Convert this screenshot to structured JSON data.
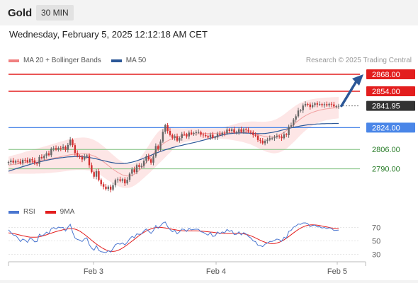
{
  "header": {
    "symbol": "Gold",
    "timeframe": "30 MIN"
  },
  "datetime": "Wednesday, February 5, 2025 12:12:18 AM CET",
  "legend_main": [
    {
      "label": "MA 20 + Bollinger Bands",
      "color": "#f08080"
    },
    {
      "label": "MA 50",
      "color": "#2b5797"
    }
  ],
  "legend_rsi": [
    {
      "label": "RSI",
      "color": "#4a76d0"
    },
    {
      "label": "9MA",
      "color": "#e31e1e"
    }
  ],
  "credit": "Research © 2025 Trading Central",
  "colors": {
    "resistance": "#e31e1e",
    "support_blue": "#4a86e8",
    "support_green": "#7ec07e",
    "candle_up": "#666666",
    "candle_down": "#d32f2f",
    "band": "#fde2e2",
    "ma20": "#f2a0a0",
    "ma50": "#2b5797",
    "arrow": "#2b5797",
    "last_price": "#333333"
  },
  "chart_data": [
    {
      "type": "candlestick",
      "title": "",
      "x_ticks": [
        "Feb 3",
        "Feb 4",
        "Feb 5"
      ],
      "ylim": [
        2760,
        2875
      ],
      "levels": [
        {
          "value": 2868.0,
          "label": "2868.00",
          "style": "red"
        },
        {
          "value": 2854.0,
          "label": "2854.00",
          "style": "red"
        },
        {
          "value": 2841.95,
          "label": "2841.95",
          "style": "last"
        },
        {
          "value": 2824.0,
          "label": "2824.00",
          "style": "blue"
        },
        {
          "value": 2806.0,
          "label": "2806.00",
          "style": "green"
        },
        {
          "value": 2790.0,
          "label": "2790.00",
          "style": "green"
        }
      ],
      "closes": [
        2795.6,
        2796.8,
        2795.2,
        2796.4,
        2796.0,
        2794.6,
        2797.4,
        2797.2,
        2795.5,
        2797.9,
        2797.0,
        2794.4,
        2794.0,
        2799.8,
        2798.8,
        2800.7,
        2802.8,
        2801.3,
        2806.6,
        2807.1,
        2805.9,
        2807.3,
        2806.8,
        2808.1,
        2805.7,
        2809.7,
        2814.0,
        2809.5,
        2803.1,
        2800.7,
        2799.8,
        2797.7,
        2800.1,
        2801.1,
        2793.0,
        2787.3,
        2783.5,
        2788.0,
        2780.8,
        2777.3,
        2775.3,
        2773.3,
        2775.3,
        2772.8,
        2776.4,
        2780.7,
        2781.3,
        2780.1,
        2781.4,
        2778.0,
        2781.0,
        2786.0,
        2789.6,
        2787.3,
        2793.1,
        2791.6,
        2792.4,
        2796.7,
        2800.3,
        2797.8,
        2795.1,
        2800.2,
        2808.8,
        2806.3,
        2812.5,
        2820.5,
        2826.0,
        2821.3,
        2817.9,
        2815.6,
        2816.9,
        2813.3,
        2815.4,
        2818.7,
        2818.5,
        2816.7,
        2819.9,
        2818.9,
        2819.6,
        2820.1,
        2820.3,
        2818.2,
        2817.8,
        2817.0,
        2815.9,
        2818.2,
        2815.5,
        2815.9,
        2819.0,
        2818.1,
        2819.8,
        2819.2,
        2822.4,
        2821.3,
        2822.6,
        2820.0,
        2820.3,
        2822.6,
        2820.6,
        2822.6,
        2822.1,
        2820.7,
        2820.0,
        2817.9,
        2817.3,
        2813.8,
        2813.2,
        2811.1,
        2813.1,
        2814.0,
        2815.3,
        2815.3,
        2816.1,
        2817.0,
        2816.6,
        2815.3,
        2818.4,
        2817.8,
        2824.8,
        2825.9,
        2830.6,
        2833.3,
        2838.1,
        2838.2,
        2842.2,
        2843.5,
        2843.1,
        2841.0,
        2842.6,
        2844.0,
        2843.0,
        2843.4,
        2842.5,
        2843.3,
        2842.4,
        2843.6,
        2843.1,
        2841.5,
        2841.7,
        2841.95
      ],
      "ma20": [
        2793.0,
        2793.3,
        2793.6,
        2793.8,
        2794.1,
        2794.4,
        2794.7,
        2795.0,
        2795.3,
        2795.5,
        2795.8,
        2796.1,
        2796.4,
        2796.7,
        2797.0,
        2797.3,
        2797.7,
        2798.0,
        2798.4,
        2798.8,
        2799.2,
        2799.6,
        2800.0,
        2800.4,
        2800.8,
        2801.2,
        2801.6,
        2801.9,
        2802.1,
        2802.3,
        2802.4,
        2802.4,
        2802.4,
        2802.2,
        2801.9,
        2801.3,
        2800.6,
        2799.7,
        2798.6,
        2797.3,
        2795.8,
        2794.3,
        2792.7,
        2791.2,
        2789.7,
        2788.3,
        2787.0,
        2785.9,
        2785.0,
        2784.4,
        2784.1,
        2784.1,
        2784.6,
        2785.5,
        2786.9,
        2788.6,
        2790.6,
        2792.8,
        2795.2,
        2797.6,
        2800.1,
        2802.6,
        2804.9,
        2807.0,
        2808.9,
        2810.5,
        2811.9,
        2813.1,
        2814.1,
        2815.0,
        2815.7,
        2816.3,
        2816.8,
        2817.3,
        2817.7,
        2818.0,
        2818.3,
        2818.5,
        2818.7,
        2818.8,
        2818.9,
        2819.0,
        2819.1,
        2819.1,
        2819.2,
        2819.2,
        2819.3,
        2819.3,
        2819.4,
        2819.4,
        2819.5,
        2819.6,
        2819.7,
        2819.9,
        2820.0,
        2820.1,
        2820.2,
        2820.3,
        2820.3,
        2820.2,
        2820.0,
        2819.8,
        2819.5,
        2819.1,
        2818.6,
        2818.1,
        2817.6,
        2817.1,
        2816.7,
        2816.4,
        2816.3,
        2816.3,
        2816.6,
        2817.1,
        2817.9,
        2818.9,
        2820.1,
        2821.5,
        2823.1,
        2824.7,
        2826.4,
        2828.1,
        2829.7,
        2831.2,
        2832.6,
        2833.8,
        2834.9,
        2835.8,
        2836.6,
        2837.3,
        2837.9,
        2838.4,
        2838.8,
        2839.2,
        2839.5,
        2839.7,
        2840.0,
        2840.2,
        2840.3,
        2840.5
      ],
      "ma50": [
        2788.0,
        2788.7,
        2789.3,
        2790.0,
        2790.6,
        2791.2,
        2791.8,
        2792.4,
        2793.0,
        2793.6,
        2794.1,
        2794.7,
        2795.2,
        2795.7,
        2796.1,
        2796.6,
        2797.0,
        2797.4,
        2797.8,
        2798.2,
        2798.5,
        2798.8,
        2799.1,
        2799.3,
        2799.6,
        2799.8,
        2799.9,
        2800.0,
        2800.1,
        2800.1,
        2800.1,
        2800.0,
        2799.8,
        2799.6,
        2799.3,
        2799.0,
        2798.6,
        2798.2,
        2797.7,
        2797.2,
        2796.7,
        2796.3,
        2795.8,
        2795.4,
        2795.0,
        2794.7,
        2794.5,
        2794.4,
        2794.4,
        2794.5,
        2794.7,
        2795.1,
        2795.5,
        2796.0,
        2796.6,
        2797.3,
        2798.0,
        2798.8,
        2799.6,
        2800.4,
        2801.2,
        2802.0,
        2802.8,
        2803.6,
        2804.3,
        2805.0,
        2805.7,
        2806.3,
        2806.9,
        2807.5,
        2808.0,
        2808.5,
        2809.0,
        2809.4,
        2809.9,
        2810.3,
        2810.7,
        2811.2,
        2811.6,
        2812.1,
        2812.6,
        2813.1,
        2813.6,
        2814.1,
        2814.7,
        2815.3,
        2815.8,
        2816.4,
        2816.9,
        2817.4,
        2817.9,
        2818.3,
        2818.7,
        2819.0,
        2819.2,
        2819.4,
        2819.5,
        2819.6,
        2819.6,
        2819.6,
        2819.5,
        2819.4,
        2819.3,
        2819.2,
        2819.1,
        2819.1,
        2819.1,
        2819.1,
        2819.2,
        2819.4,
        2819.7,
        2820.0,
        2820.4,
        2820.8,
        2821.3,
        2821.8,
        2822.3,
        2822.8,
        2823.3,
        2823.8,
        2824.2,
        2824.7,
        2825.0,
        2825.4,
        2825.7,
        2826.0,
        2826.3,
        2826.5,
        2826.7,
        2826.8,
        2827.0,
        2827.1,
        2827.2,
        2827.2,
        2827.3,
        2827.3,
        2827.3,
        2827.4,
        2827.4,
        2827.4
      ],
      "band_width": [
        7.0,
        7.3,
        7.6,
        7.9,
        8.1,
        8.4,
        8.7,
        9.0,
        9.3,
        9.6,
        9.8,
        10.1,
        10.3,
        10.6,
        10.8,
        11.1,
        11.3,
        11.5,
        11.7,
        11.9,
        12.1,
        12.3,
        12.5,
        12.6,
        12.8,
        12.9,
        13.0,
        13.1,
        13.2,
        13.3,
        13.3,
        13.4,
        13.4,
        13.4,
        13.3,
        13.3,
        13.2,
        13.1,
        13.0,
        12.8,
        12.7,
        12.5,
        12.3,
        12.0,
        11.8,
        11.5,
        11.2,
        10.9,
        10.6,
        10.3,
        10.0,
        9.7,
        9.5,
        9.4,
        9.4,
        9.6,
        9.9,
        10.4,
        11.0,
        11.6,
        12.3,
        12.8,
        13.2,
        13.4,
        13.3,
        13.0,
        12.4,
        11.6,
        10.7,
        9.6,
        8.6,
        7.6,
        6.8,
        6.2,
        5.8,
        5.6,
        5.6,
        5.6,
        5.7,
        5.6,
        5.5,
        5.3,
        5.0,
        4.8,
        4.6,
        4.4,
        4.3,
        4.3,
        4.3,
        4.5,
        4.7,
        5.0,
        5.3,
        5.7,
        6.1,
        6.6,
        7.0,
        7.5,
        7.9,
        8.3,
        8.7,
        9.1,
        9.5,
        9.9,
        10.4,
        10.8,
        11.3,
        11.7,
        12.2,
        12.6,
        13.0,
        13.4,
        13.8,
        14.1,
        14.4,
        14.6,
        14.8,
        14.9,
        14.9,
        14.7,
        14.5,
        14.2,
        13.8,
        13.3,
        12.8,
        12.3,
        11.8,
        11.3,
        10.9,
        10.5,
        10.2,
        9.9,
        9.7,
        9.5,
        9.3,
        9.2,
        9.1,
        9.0,
        8.9,
        8.9
      ]
    },
    {
      "type": "line",
      "title": "",
      "ylim": [
        20,
        80
      ],
      "y_ticks": [
        70,
        50,
        30
      ],
      "series": [
        {
          "name": "RSI",
          "values": [
            66.4,
            62.5,
            58.7,
            58.2,
            54.2,
            49.0,
            52.7,
            51.2,
            47.8,
            54.0,
            52.6,
            48.6,
            49.0,
            59.9,
            57.4,
            59.5,
            63.1,
            61.0,
            68.2,
            69.8,
            67.6,
            70.4,
            69.6,
            70.1,
            64.6,
            70.3,
            74.7,
            62.8,
            54.3,
            52.2,
            51.2,
            49.0,
            53.2,
            54.5,
            44.3,
            39.2,
            36.1,
            42.9,
            35.9,
            33.9,
            33.3,
            32.5,
            35.5,
            33.4,
            38.6,
            44.5,
            46.0,
            45.2,
            46.9,
            44.0,
            47.8,
            53.1,
            56.6,
            54.8,
            60.4,
            59.7,
            60.4,
            65.0,
            67.8,
            64.4,
            61.2,
            65.3,
            72.8,
            68.8,
            72.5,
            76.6,
            78.1,
            71.3,
            67.0,
            63.7,
            65.6,
            60.5,
            63.5,
            67.7,
            67.1,
            64.0,
            68.7,
            66.4,
            67.2,
            67.5,
            67.3,
            63.6,
            62.7,
            60.5,
            58.5,
            62.5,
            56.6,
            57.5,
            63.3,
            60.5,
            63.4,
            61.8,
            67.1,
            64.1,
            65.7,
            59.5,
            59.8,
            63.5,
            58.9,
            62.2,
            60.3,
            56.7,
            54.3,
            50.0,
            48.8,
            43.6,
            43.2,
            41.5,
            45.2,
            46.8,
            49.0,
            49.2,
            50.8,
            52.7,
            51.8,
            49.3,
            55.5,
            53.9,
            64.2,
            65.6,
            70.4,
            72.2,
            75.2,
            74.6,
            76.7,
            76.8,
            75.7,
            71.2,
            72.9,
            73.6,
            71.0,
            71.1,
            69.2,
            70.0,
            68.2,
            69.6,
            68.5,
            65.6,
            65.8,
            66.0
          ]
        },
        {
          "name": "9MA",
          "values": [
            62.0,
            61.5,
            60.9,
            60.2,
            59.4,
            58.5,
            57.7,
            56.9,
            56.2,
            55.7,
            55.5,
            55.5,
            55.7,
            56.2,
            57.0,
            58.0,
            59.1,
            60.3,
            61.5,
            62.7,
            63.8,
            64.8,
            65.7,
            66.6,
            67.3,
            67.9,
            68.2,
            68.1,
            67.5,
            66.3,
            64.5,
            62.2,
            59.6,
            56.8,
            53.9,
            51.0,
            48.1,
            45.4,
            42.8,
            40.5,
            38.4,
            36.6,
            35.3,
            34.5,
            34.3,
            34.7,
            35.8,
            37.4,
            39.4,
            41.7,
            44.2,
            46.9,
            49.6,
            52.4,
            55.2,
            57.9,
            60.4,
            62.7,
            64.8,
            66.5,
            67.9,
            69.0,
            69.7,
            70.1,
            70.1,
            69.8,
            69.3,
            68.7,
            68.0,
            67.3,
            66.7,
            66.1,
            65.6,
            65.3,
            65.1,
            64.9,
            64.9,
            64.9,
            64.9,
            64.9,
            64.8,
            64.6,
            64.3,
            64.0,
            63.6,
            63.2,
            62.8,
            62.3,
            61.9,
            61.6,
            61.4,
            61.2,
            61.1,
            61.1,
            61.2,
            61.3,
            61.3,
            61.2,
            61.0,
            60.5,
            59.8,
            58.8,
            57.6,
            56.1,
            54.4,
            52.7,
            51.0,
            49.4,
            48.0,
            46.9,
            46.2,
            45.9,
            46.1,
            46.8,
            48.0,
            49.7,
            51.7,
            54.0,
            56.5,
            59.2,
            61.9,
            64.5,
            66.9,
            69.0,
            70.8,
            72.2,
            73.2,
            73.8,
            74.0,
            73.8,
            73.4,
            72.8,
            72.1,
            71.4,
            70.7,
            70.0,
            69.3,
            68.8,
            68.4,
            68.1
          ]
        }
      ]
    }
  ]
}
